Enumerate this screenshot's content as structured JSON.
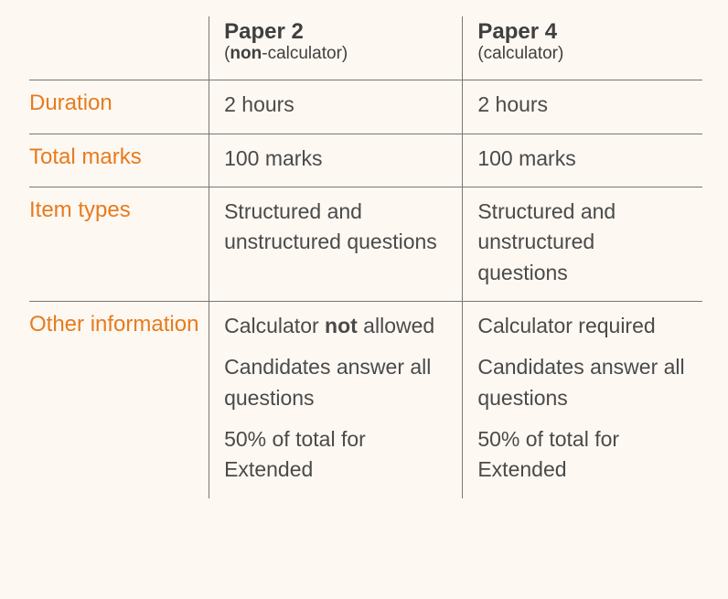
{
  "table": {
    "background_color": "#fdf8f2",
    "border_color": "#777777",
    "label_color": "#e77b1d",
    "text_color": "#4a4a4a",
    "header_fontsize": 24,
    "subheader_fontsize": 19,
    "label_fontsize": 24,
    "cell_fontsize": 23,
    "columns": {
      "paper2": {
        "title": "Paper 2",
        "subtitle_html": "(<b>non</b>-calculator)"
      },
      "paper4": {
        "title": "Paper 4",
        "subtitle": "(calculator)"
      }
    },
    "rows": {
      "duration": {
        "label": "Duration",
        "paper2": "2 hours",
        "paper4": "2 hours"
      },
      "total_marks": {
        "label": "Total marks",
        "paper2": "100 marks",
        "paper4": "100 marks"
      },
      "item_types": {
        "label": "Item types",
        "paper2": "Structured and unstructured questions",
        "paper4": "Structured and unstructured questions"
      },
      "other_info": {
        "label": "Other information",
        "paper2_paras_html": [
          "Calculator <b>not</b> allowed",
          "Candidates answer all questions",
          "50% of total for Extended"
        ],
        "paper4_paras": [
          "Calculator required",
          "Candidates answer all questions",
          "50% of total for Extended"
        ]
      }
    }
  }
}
